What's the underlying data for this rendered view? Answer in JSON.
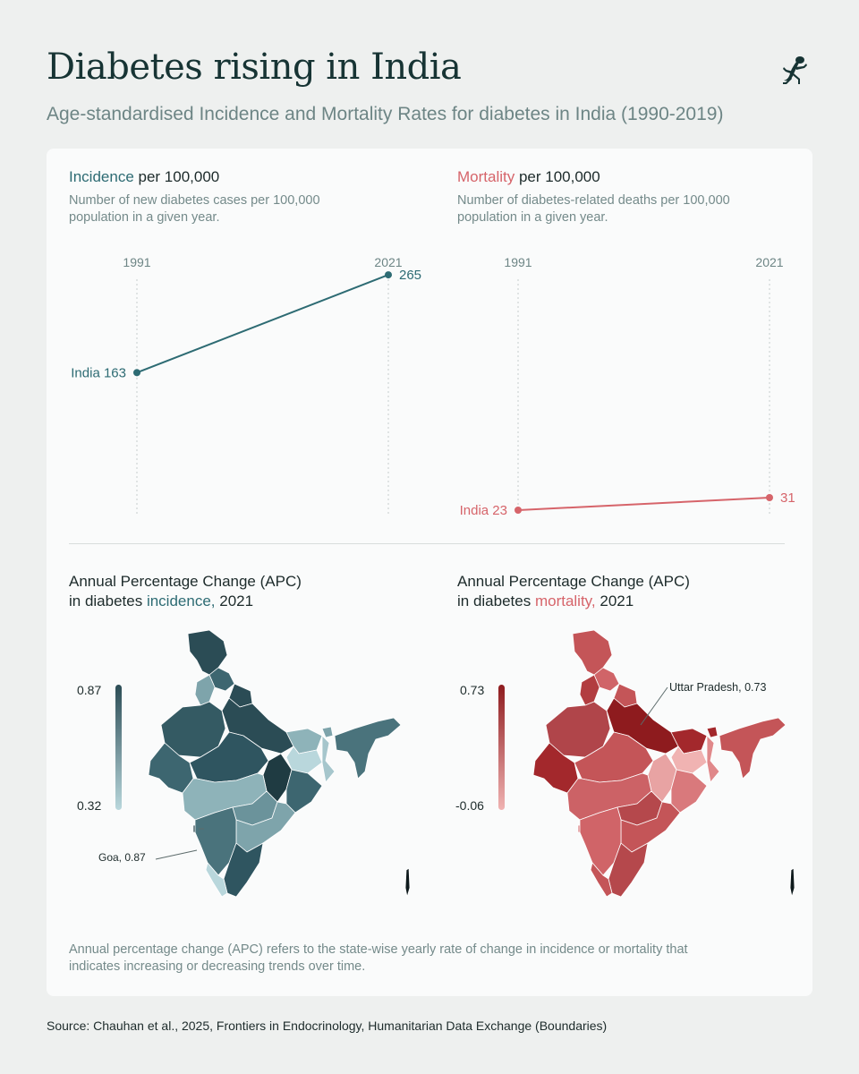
{
  "header": {
    "title": "Diabetes rising in India",
    "subtitle": "Age-standardised Incidence and Mortality Rates for diabetes in India (1990-2019)"
  },
  "logo": {
    "icon": "gecko-icon"
  },
  "incidence_panel": {
    "title_highlight": "Incidence",
    "title_rest": " per 100,000",
    "description": "Number of new diabetes cases per 100,000 population in a given year."
  },
  "mortality_panel": {
    "title_highlight": "Mortality",
    "title_rest": " per 100,000",
    "description": "Number of diabetes-related deaths per 100,000 population in a given year."
  },
  "incidence_map": {
    "title_line1": "Annual Percentage Change (APC)",
    "title_prefix": "in diabetes ",
    "title_highlight": "incidence,",
    "title_suffix": " 2021",
    "legend_max": "0.87",
    "legend_min": "0.32",
    "callout": "Goa, 0.87"
  },
  "mortality_map": {
    "title_line1": "Annual Percentage Change (APC)",
    "title_prefix": "in diabetes ",
    "title_highlight": "mortality,",
    "title_suffix": " 2021",
    "legend_max": "0.73",
    "legend_min": "-0.06",
    "callout": "Uttar Pradesh, 0.73"
  },
  "note": "Annual percentage change (APC) refers to the state-wise yearly rate of change in incidence or mortality that indicates increasing or decreasing trends over time.",
  "source": "Source: Chauhan et al., 2025, Frontiers in Endocrinology, Humanitarian Data Exchange (Boundaries)",
  "colors": {
    "teal": "#2d6b73",
    "teal_dark": "#2b4c55",
    "teal_light": "#b9d7dc",
    "red": "#d6646a",
    "red_dark": "#8e1b1e",
    "red_light": "#f0b3b2"
  },
  "chart_data": [
    {
      "type": "line",
      "x": [
        "1991",
        "2021"
      ],
      "series": [
        {
          "name": "India",
          "values": [
            163,
            265
          ],
          "labels": [
            "India 163",
            "265"
          ]
        }
      ],
      "title": "Incidence per 100,000"
    },
    {
      "type": "line",
      "x": [
        "1991",
        "2021"
      ],
      "series": [
        {
          "name": "India",
          "values": [
            23,
            31
          ],
          "labels": [
            "India 23",
            "31"
          ]
        }
      ],
      "title": "Mortality per 100,000"
    }
  ]
}
